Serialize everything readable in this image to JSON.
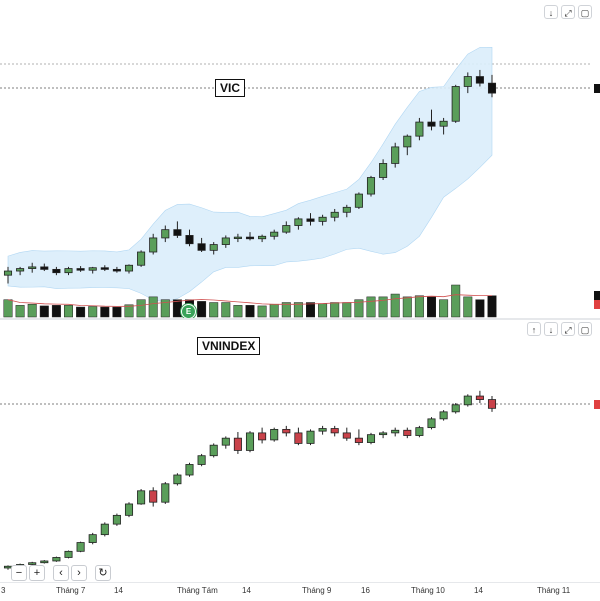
{
  "top_pane": {
    "symbol": "VIC",
    "buttons": [
      "↓",
      "⤢",
      "▢"
    ],
    "event_marker": "E"
  },
  "bottom_pane": {
    "symbol": "VNINDEX",
    "buttons": [
      "↑",
      "↓",
      "⤢",
      "▢"
    ]
  },
  "nav_buttons": [
    "−",
    "+",
    "‹",
    "›",
    "↻"
  ],
  "x_axis": {
    "ticks": [
      "3",
      "Tháng 7",
      "14",
      "Tháng Tám",
      "14",
      "Tháng 9",
      "16",
      "Tháng 10",
      "14",
      "Tháng 11"
    ]
  },
  "colors": {
    "up": "#5a9e5a",
    "down": "#111111",
    "vn_down": "#c9424a",
    "band_fill": "#dbeefb",
    "ma_line": "#d05050",
    "price_tag": "#e04040"
  },
  "chart_data": [
    {
      "type": "candlestick",
      "name": "VIC",
      "candles": [
        [
          21,
          22,
          20,
          21.5
        ],
        [
          21.5,
          22,
          21,
          21.8
        ],
        [
          21.8,
          22.5,
          21.3,
          22
        ],
        [
          22,
          22.4,
          21.5,
          21.7
        ],
        [
          21.7,
          22,
          21,
          21.3
        ],
        [
          21.3,
          22,
          21,
          21.8
        ],
        [
          21.8,
          22.1,
          21.4,
          21.6
        ],
        [
          21.6,
          22,
          21.2,
          21.9
        ],
        [
          21.9,
          22.2,
          21.5,
          21.7
        ],
        [
          21.7,
          22,
          21.3,
          21.5
        ],
        [
          21.5,
          22.3,
          21.2,
          22.2
        ],
        [
          22.2,
          24,
          22,
          23.8
        ],
        [
          23.8,
          26,
          23.5,
          25.5
        ],
        [
          25.5,
          27,
          25,
          26.5
        ],
        [
          26.5,
          27.5,
          25.5,
          25.8
        ],
        [
          25.8,
          26.5,
          24.5,
          24.8
        ],
        [
          24.8,
          25.5,
          23.8,
          24
        ],
        [
          24,
          25,
          23.5,
          24.7
        ],
        [
          24.7,
          25.8,
          24.3,
          25.5
        ],
        [
          25.5,
          26,
          25,
          25.6
        ],
        [
          25.6,
          26.2,
          25.2,
          25.4
        ],
        [
          25.4,
          25.9,
          25,
          25.7
        ],
        [
          25.7,
          26.5,
          25.3,
          26.2
        ],
        [
          26.2,
          27.5,
          26,
          27
        ],
        [
          27,
          28,
          26.5,
          27.8
        ],
        [
          27.8,
          28.5,
          27,
          27.5
        ],
        [
          27.5,
          28.3,
          27,
          28
        ],
        [
          28,
          29,
          27.5,
          28.6
        ],
        [
          28.6,
          29.5,
          28,
          29.2
        ],
        [
          29.2,
          31,
          29,
          30.8
        ],
        [
          30.8,
          33,
          30.5,
          32.8
        ],
        [
          32.8,
          35,
          32.5,
          34.5
        ],
        [
          34.5,
          37,
          34,
          36.5
        ],
        [
          36.5,
          38,
          35.5,
          37.8
        ],
        [
          37.8,
          40,
          37.3,
          39.5
        ],
        [
          39.5,
          41,
          38.5,
          39
        ],
        [
          39,
          40,
          38,
          39.6
        ],
        [
          39.6,
          44,
          39.4,
          43.8
        ],
        [
          43.8,
          45.5,
          43,
          45
        ],
        [
          45,
          45.8,
          43.8,
          44.2
        ],
        [
          44.2,
          45.2,
          42.5,
          43
        ]
      ],
      "ylim": [
        18,
        47
      ]
    },
    {
      "type": "candlestick",
      "name": "VNINDEX",
      "candles": [
        [
          1270,
          1273,
          1268,
          1272
        ],
        [
          1272,
          1275,
          1271,
          1274
        ],
        [
          1274,
          1277,
          1273,
          1276
        ],
        [
          1276,
          1279,
          1275,
          1278
        ],
        [
          1278,
          1283,
          1277,
          1282
        ],
        [
          1282,
          1290,
          1281,
          1289
        ],
        [
          1289,
          1300,
          1288,
          1299
        ],
        [
          1299,
          1310,
          1297,
          1308
        ],
        [
          1308,
          1322,
          1306,
          1320
        ],
        [
          1320,
          1332,
          1318,
          1330
        ],
        [
          1330,
          1345,
          1328,
          1343
        ],
        [
          1343,
          1360,
          1342,
          1358
        ],
        [
          1358,
          1362,
          1340,
          1345
        ],
        [
          1345,
          1368,
          1343,
          1366
        ],
        [
          1366,
          1378,
          1364,
          1376
        ],
        [
          1376,
          1390,
          1374,
          1388
        ],
        [
          1388,
          1400,
          1386,
          1398
        ],
        [
          1398,
          1412,
          1396,
          1410
        ],
        [
          1410,
          1420,
          1406,
          1418
        ],
        [
          1418,
          1425,
          1400,
          1404
        ],
        [
          1404,
          1426,
          1402,
          1424
        ],
        [
          1424,
          1430,
          1412,
          1416
        ],
        [
          1416,
          1430,
          1414,
          1428
        ],
        [
          1428,
          1432,
          1420,
          1424
        ],
        [
          1424,
          1430,
          1410,
          1412
        ],
        [
          1412,
          1428,
          1410,
          1426
        ],
        [
          1426,
          1432,
          1422,
          1429
        ],
        [
          1429,
          1432,
          1420,
          1424
        ],
        [
          1424,
          1430,
          1415,
          1418
        ],
        [
          1418,
          1428,
          1410,
          1413
        ],
        [
          1413,
          1424,
          1411,
          1422
        ],
        [
          1422,
          1426,
          1418,
          1424
        ],
        [
          1424,
          1430,
          1420,
          1427
        ],
        [
          1427,
          1430,
          1418,
          1421
        ],
        [
          1421,
          1432,
          1419,
          1430
        ],
        [
          1430,
          1442,
          1428,
          1440
        ],
        [
          1440,
          1450,
          1438,
          1448
        ],
        [
          1448,
          1458,
          1446,
          1456
        ],
        [
          1456,
          1468,
          1454,
          1466
        ],
        [
          1466,
          1472,
          1458,
          1462
        ],
        [
          1462,
          1466,
          1448,
          1452
        ]
      ],
      "ylim": [
        1262,
        1490
      ]
    }
  ]
}
